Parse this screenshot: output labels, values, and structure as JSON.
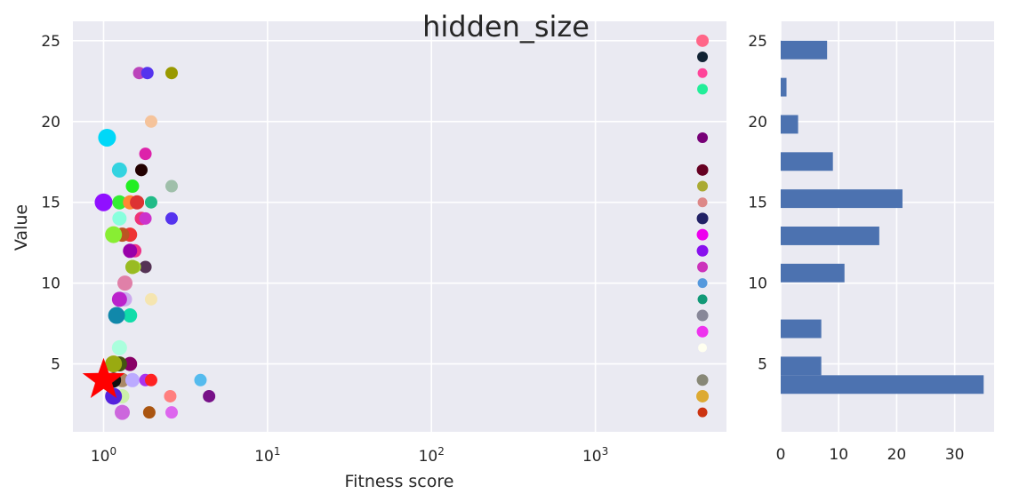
{
  "chart_data": [
    {
      "type": "scatter",
      "title": "hidden_size",
      "xlabel": "Fitness score",
      "ylabel": "Value",
      "xscale": "log",
      "xlim": [
        0.65,
        6300
      ],
      "ylim": [
        0.8,
        26.2
      ],
      "x_ticks": [
        1,
        10,
        100,
        1000
      ],
      "x_tick_labels": [
        {
          "base": "10",
          "exp": "0"
        },
        {
          "base": "10",
          "exp": "1"
        },
        {
          "base": "10",
          "exp": "2"
        },
        {
          "base": "10",
          "exp": "3"
        }
      ],
      "y_ticks": [
        5,
        10,
        15,
        20,
        25
      ],
      "y_tick_labels": [
        "5",
        "10",
        "15",
        "20",
        "25"
      ],
      "grid": true,
      "background": "#eaeaf2",
      "points": [
        {
          "x": 1.65,
          "y": 23,
          "color": "#bb44bb",
          "size": 12
        },
        {
          "x": 1.85,
          "y": 23,
          "color": "#5533ee",
          "size": 12
        },
        {
          "x": 2.6,
          "y": 23,
          "color": "#999900",
          "size": 12
        },
        {
          "x": 1.95,
          "y": 20,
          "color": "#f5c39b",
          "size": 12
        },
        {
          "x": 1.05,
          "y": 19,
          "color": "#00d8f8",
          "size": 18
        },
        {
          "x": 1.8,
          "y": 18,
          "color": "#dd22aa",
          "size": 12
        },
        {
          "x": 1.25,
          "y": 17,
          "color": "#33d3e0",
          "size": 15
        },
        {
          "x": 1.7,
          "y": 17,
          "color": "#220000",
          "size": 12
        },
        {
          "x": 1.5,
          "y": 16,
          "color": "#22ee22",
          "size": 13
        },
        {
          "x": 2.6,
          "y": 16,
          "color": "#9fbfaa",
          "size": 12
        },
        {
          "x": 1.0,
          "y": 15,
          "color": "#9010ff",
          "size": 18
        },
        {
          "x": 1.25,
          "y": 15,
          "color": "#33ee33",
          "size": 14
        },
        {
          "x": 1.45,
          "y": 15,
          "color": "#ff8833",
          "size": 14
        },
        {
          "x": 1.6,
          "y": 15,
          "color": "#dd3333",
          "size": 14
        },
        {
          "x": 1.95,
          "y": 15,
          "color": "#22bb88",
          "size": 12
        },
        {
          "x": 1.25,
          "y": 14,
          "color": "#88ffdd",
          "size": 14
        },
        {
          "x": 1.7,
          "y": 14,
          "color": "#ee3377",
          "size": 13
        },
        {
          "x": 1.8,
          "y": 14,
          "color": "#cc33cc",
          "size": 12
        },
        {
          "x": 2.6,
          "y": 14,
          "color": "#5533ee",
          "size": 12
        },
        {
          "x": 1.45,
          "y": 13,
          "color": "#ee3333",
          "size": 14
        },
        {
          "x": 1.3,
          "y": 13,
          "color": "#bb5522",
          "size": 14
        },
        {
          "x": 1.15,
          "y": 13,
          "color": "#88ee33",
          "size": 17
        },
        {
          "x": 1.55,
          "y": 12,
          "color": "#ee3388",
          "size": 13
        },
        {
          "x": 1.45,
          "y": 12,
          "color": "#9900aa",
          "size": 14
        },
        {
          "x": 1.8,
          "y": 11,
          "color": "#553355",
          "size": 12
        },
        {
          "x": 1.55,
          "y": 11,
          "color": "#aadd33",
          "size": 12
        },
        {
          "x": 1.5,
          "y": 11,
          "color": "#99bb22",
          "size": 14
        },
        {
          "x": 1.35,
          "y": 10,
          "color": "#e080a8",
          "size": 15
        },
        {
          "x": 1.95,
          "y": 9,
          "color": "#f5e5b0",
          "size": 12
        },
        {
          "x": 1.35,
          "y": 9,
          "color": "#ccaaee",
          "size": 14
        },
        {
          "x": 1.25,
          "y": 9,
          "color": "#bb22cc",
          "size": 15
        },
        {
          "x": 1.45,
          "y": 8,
          "color": "#11ddaa",
          "size": 14
        },
        {
          "x": 1.2,
          "y": 8,
          "color": "#1188aa",
          "size": 17
        },
        {
          "x": 1.25,
          "y": 6,
          "color": "#aaffdd",
          "size": 15
        },
        {
          "x": 1.45,
          "y": 5,
          "color": "#880066",
          "size": 14
        },
        {
          "x": 1.25,
          "y": 5,
          "color": "#445511",
          "size": 15
        },
        {
          "x": 1.15,
          "y": 5,
          "color": "#99aa11",
          "size": 17
        },
        {
          "x": 1.3,
          "y": 4,
          "color": "#aa8866",
          "size": 14
        },
        {
          "x": 1.5,
          "y": 4,
          "color": "#bbaaff",
          "size": 14
        },
        {
          "x": 1.8,
          "y": 4,
          "color": "#aa33ee",
          "size": 12
        },
        {
          "x": 1.95,
          "y": 4,
          "color": "#ff2222",
          "size": 12
        },
        {
          "x": 3.9,
          "y": 4,
          "color": "#55bbee",
          "size": 12
        },
        {
          "x": 1.15,
          "y": 4,
          "color": "#111111",
          "size": 15
        },
        {
          "x": 1.3,
          "y": 3,
          "color": "#ccf0aa",
          "size": 14
        },
        {
          "x": 1.15,
          "y": 3,
          "color": "#5522dd",
          "size": 17
        },
        {
          "x": 2.55,
          "y": 3,
          "color": "#ff7f7f",
          "size": 12
        },
        {
          "x": 4.4,
          "y": 3,
          "color": "#771188",
          "size": 12
        },
        {
          "x": 1.3,
          "y": 2,
          "color": "#cc66dd",
          "size": 15
        },
        {
          "x": 1.9,
          "y": 2,
          "color": "#aa5511",
          "size": 12
        },
        {
          "x": 2.6,
          "y": 2,
          "color": "#dd66ee",
          "size": 12
        },
        {
          "x": 4500,
          "y": 25,
          "color": "#ff6688",
          "size": 12
        },
        {
          "x": 4500,
          "y": 24,
          "color": "#112233",
          "size": 10
        },
        {
          "x": 4500,
          "y": 23,
          "color": "#ff4499",
          "size": 9
        },
        {
          "x": 4500,
          "y": 22,
          "color": "#22ee99",
          "size": 10
        },
        {
          "x": 4500,
          "y": 19,
          "color": "#770077",
          "size": 10
        },
        {
          "x": 4500,
          "y": 17,
          "color": "#660022",
          "size": 11
        },
        {
          "x": 4500,
          "y": 16,
          "color": "#aaaa33",
          "size": 10
        },
        {
          "x": 4500,
          "y": 15,
          "color": "#dd8888",
          "size": 9
        },
        {
          "x": 4500,
          "y": 14,
          "color": "#222266",
          "size": 11
        },
        {
          "x": 4500,
          "y": 13,
          "color": "#ee00ee",
          "size": 11
        },
        {
          "x": 4500,
          "y": 12,
          "color": "#8811ee",
          "size": 11
        },
        {
          "x": 4500,
          "y": 11,
          "color": "#cc33bb",
          "size": 10
        },
        {
          "x": 4500,
          "y": 10,
          "color": "#5599dd",
          "size": 9
        },
        {
          "x": 4500,
          "y": 9,
          "color": "#119977",
          "size": 9
        },
        {
          "x": 4500,
          "y": 8,
          "color": "#888899",
          "size": 11
        },
        {
          "x": 4500,
          "y": 7,
          "color": "#ee33ee",
          "size": 11
        },
        {
          "x": 4500,
          "y": 6,
          "color": "#fffff0",
          "size": 8
        },
        {
          "x": 4500,
          "y": 4,
          "color": "#888877",
          "size": 11
        },
        {
          "x": 4500,
          "y": 3,
          "color": "#ddaa33",
          "size": 12
        },
        {
          "x": 4500,
          "y": 2,
          "color": "#cc3311",
          "size": 9
        }
      ],
      "best_marker": {
        "x": 1.0,
        "y": 4,
        "color": "#ff0000",
        "shape": "star"
      }
    },
    {
      "type": "bar",
      "orientation": "horizontal",
      "bin_edges": [
        2.0,
        3.15,
        4.3,
        5.45,
        6.6,
        7.75,
        8.9,
        10.05,
        11.2,
        12.35,
        13.5,
        14.65,
        15.8,
        16.95,
        18.1,
        19.25,
        20.4,
        21.55,
        22.7,
        23.85,
        25.0
      ],
      "counts": [
        0,
        35,
        7,
        0,
        7,
        0,
        0,
        11,
        0,
        17,
        0,
        21,
        0,
        9,
        0,
        3,
        0,
        1,
        0,
        8
      ],
      "xlim": [
        0,
        36.8
      ],
      "ylim": [
        0.8,
        26.2
      ],
      "x_ticks": [
        0,
        10,
        20,
        30
      ],
      "x_tick_labels": [
        "0",
        "10",
        "20",
        "30"
      ],
      "y_ticks": [
        5,
        10,
        15,
        20,
        25
      ],
      "y_tick_labels": [
        "5",
        "10",
        "15",
        "20",
        "25"
      ],
      "grid": true,
      "background": "#eaeaf2",
      "bar_color": "#4c72b0"
    }
  ]
}
